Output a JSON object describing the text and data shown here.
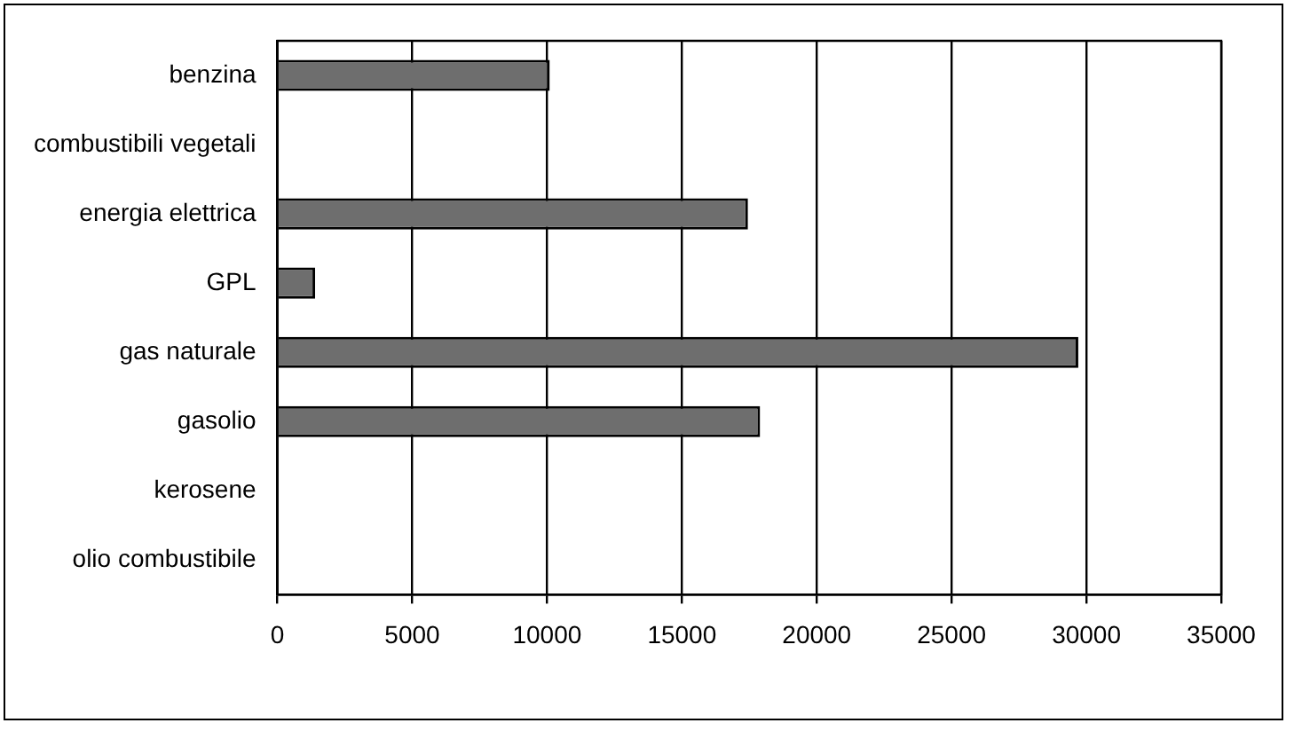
{
  "chart_data": {
    "type": "bar",
    "orientation": "horizontal",
    "categories": [
      "benzina",
      "combustibili vegetali",
      "energia elettrica",
      "GPL",
      "gas naturale",
      "gasolio",
      "kerosene",
      "olio combustibile"
    ],
    "values": [
      10100,
      0,
      17450,
      1400,
      29700,
      17900,
      0,
      0
    ],
    "color": "#6e6e6e",
    "xlim": [
      0,
      35000
    ],
    "xticks": [
      0,
      5000,
      10000,
      15000,
      20000,
      25000,
      30000,
      35000
    ],
    "grid": "x",
    "legend": false
  }
}
